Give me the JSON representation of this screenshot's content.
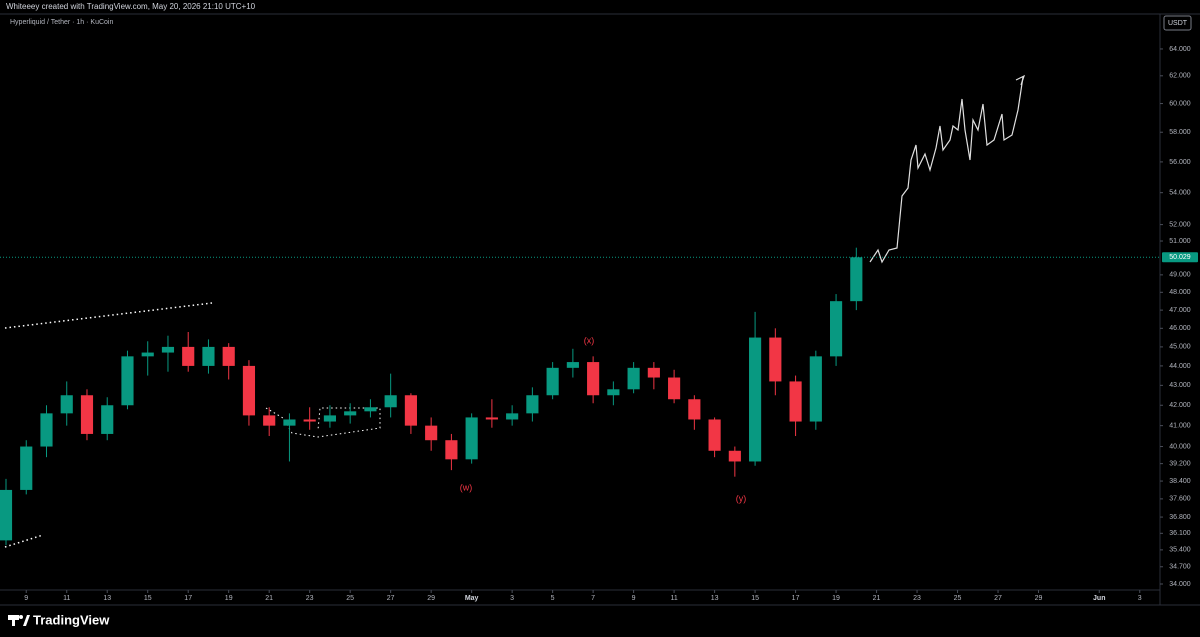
{
  "header": "Whiteeey created with TradingView.com, May 20, 2026 21:10 UTC+10",
  "footer": "TradingView",
  "chart_data": {
    "type": "candlestick",
    "title": "Hyperliquid / Tether · 1h · KuCoin",
    "currency": "USDT",
    "up_color": "#089981",
    "down_color": "#f23645",
    "log_scale": true,
    "x": [
      "2026-04-08",
      "2026-04-09",
      "2026-04-10",
      "2026-04-11",
      "2026-04-12",
      "2026-04-13",
      "2026-04-14",
      "2026-04-15",
      "2026-04-16",
      "2026-04-17",
      "2026-04-18",
      "2026-04-19",
      "2026-04-20",
      "2026-04-21",
      "2026-04-22",
      "2026-04-23",
      "2026-04-24",
      "2026-04-25",
      "2026-04-26",
      "2026-04-27",
      "2026-04-28",
      "2026-04-29",
      "2026-04-30",
      "2026-05-01",
      "2026-05-02",
      "2026-05-03",
      "2026-05-04",
      "2026-05-05",
      "2026-05-06",
      "2026-05-07",
      "2026-05-08",
      "2026-05-09",
      "2026-05-10",
      "2026-05-11",
      "2026-05-12",
      "2026-05-13",
      "2026-05-14",
      "2026-05-15",
      "2026-05-16",
      "2026-05-17",
      "2026-05-18",
      "2026-05-19",
      "2026-05-20"
    ],
    "open": [
      35.8,
      38.0,
      40.0,
      41.6,
      42.5,
      40.6,
      42.0,
      44.5,
      44.7,
      45.0,
      44.0,
      45.0,
      44.0,
      41.5,
      41.0,
      41.3,
      41.2,
      41.5,
      41.7,
      41.9,
      42.5,
      41.0,
      40.3,
      39.4,
      41.4,
      41.3,
      41.6,
      42.5,
      43.9,
      44.2,
      42.5,
      42.8,
      43.9,
      43.4,
      42.3,
      41.3,
      39.8,
      39.3,
      45.5,
      43.2,
      41.2,
      44.5,
      47.5
    ],
    "high": [
      38.5,
      40.3,
      42.0,
      43.2,
      42.8,
      42.4,
      44.8,
      45.3,
      45.6,
      45.8,
      45.4,
      45.2,
      44.3,
      41.9,
      41.6,
      41.9,
      42.0,
      42.1,
      42.3,
      43.6,
      42.6,
      41.4,
      40.6,
      41.6,
      42.3,
      42.0,
      42.9,
      44.2,
      44.9,
      44.5,
      43.2,
      44.2,
      44.2,
      43.8,
      42.5,
      41.4,
      40.0,
      46.9,
      46.0,
      43.5,
      44.8,
      47.9,
      50.6
    ],
    "low": [
      35.6,
      37.8,
      39.5,
      41.0,
      40.3,
      40.3,
      41.8,
      43.5,
      43.7,
      43.7,
      43.6,
      43.3,
      41.0,
      40.5,
      39.3,
      40.8,
      40.9,
      41.1,
      41.4,
      41.4,
      40.6,
      39.8,
      38.9,
      39.2,
      40.9,
      41.0,
      41.2,
      42.3,
      43.4,
      42.1,
      42.0,
      42.6,
      42.8,
      42.1,
      40.8,
      39.5,
      38.6,
      39.1,
      42.5,
      40.5,
      40.8,
      44.0,
      47.0
    ],
    "close": [
      38.0,
      40.0,
      41.6,
      42.5,
      40.6,
      42.0,
      44.5,
      44.7,
      45.0,
      44.0,
      45.0,
      44.0,
      41.5,
      41.0,
      41.3,
      41.2,
      41.5,
      41.7,
      41.9,
      42.5,
      41.0,
      40.3,
      39.4,
      41.4,
      41.3,
      41.6,
      42.5,
      43.9,
      44.2,
      42.5,
      42.8,
      43.9,
      43.4,
      42.3,
      41.3,
      39.8,
      39.3,
      45.5,
      43.2,
      41.2,
      44.5,
      47.5,
      50.029
    ],
    "last_price": 50.029,
    "annotations": [
      "(w)",
      "(x)",
      "(y)"
    ],
    "xlim": [
      "2026-04-08",
      "2026-06-04"
    ],
    "xticks": [
      {
        "value": "2026-04-09",
        "label": "9"
      },
      {
        "value": "2026-04-11",
        "label": "11"
      },
      {
        "value": "2026-04-13",
        "label": "13"
      },
      {
        "value": "2026-04-15",
        "label": "15"
      },
      {
        "value": "2026-04-17",
        "label": "17"
      },
      {
        "value": "2026-04-19",
        "label": "19"
      },
      {
        "value": "2026-04-21",
        "label": "21"
      },
      {
        "value": "2026-04-23",
        "label": "23"
      },
      {
        "value": "2026-04-25",
        "label": "25"
      },
      {
        "value": "2026-04-27",
        "label": "27"
      },
      {
        "value": "2026-04-29",
        "label": "29"
      },
      {
        "value": "2026-05-01",
        "label": "May"
      },
      {
        "value": "2026-05-03",
        "label": "3"
      },
      {
        "value": "2026-05-05",
        "label": "5"
      },
      {
        "value": "2026-05-07",
        "label": "7"
      },
      {
        "value": "2026-05-09",
        "label": "9"
      },
      {
        "value": "2026-05-11",
        "label": "11"
      },
      {
        "value": "2026-05-13",
        "label": "13"
      },
      {
        "value": "2026-05-15",
        "label": "15"
      },
      {
        "value": "2026-05-17",
        "label": "17"
      },
      {
        "value": "2026-05-19",
        "label": "19"
      },
      {
        "value": "2026-05-21",
        "label": "21"
      },
      {
        "value": "2026-05-23",
        "label": "23"
      },
      {
        "value": "2026-05-25",
        "label": "25"
      },
      {
        "value": "2026-05-27",
        "label": "27"
      },
      {
        "value": "2026-05-29",
        "label": "29"
      },
      {
        "value": "2026-06-01",
        "label": "Jun"
      },
      {
        "value": "2026-06-03",
        "label": "3"
      }
    ],
    "ylim": [
      33.76,
      66.7
    ],
    "yticks": [
      {
        "value": 34,
        "label": "34.000"
      },
      {
        "value": 34.7,
        "label": "34.700"
      },
      {
        "value": 35.4,
        "label": "35.400"
      },
      {
        "value": 36.1,
        "label": "36.100"
      },
      {
        "value": 36.8,
        "label": "36.800"
      },
      {
        "value": 37.6,
        "label": "37.600"
      },
      {
        "value": 38.4,
        "label": "38.400"
      },
      {
        "value": 39.2,
        "label": "39.200"
      },
      {
        "value": 40,
        "label": "40.000"
      },
      {
        "value": 41,
        "label": "41.000"
      },
      {
        "value": 42,
        "label": "42.000"
      },
      {
        "value": 43,
        "label": "43.000"
      },
      {
        "value": 44,
        "label": "44.000"
      },
      {
        "value": 45,
        "label": "45.000"
      },
      {
        "value": 46,
        "label": "46.000"
      },
      {
        "value": 47,
        "label": "47.000"
      },
      {
        "value": 48,
        "label": "48.000"
      },
      {
        "value": 49,
        "label": "49.000"
      },
      {
        "value": 51,
        "label": "51.000"
      },
      {
        "value": 52,
        "label": "52.000"
      },
      {
        "value": 54,
        "label": "54.000"
      },
      {
        "value": 56,
        "label": "56.000"
      },
      {
        "value": 58,
        "label": "58.000"
      },
      {
        "value": 60,
        "label": "60.000"
      },
      {
        "value": 62,
        "label": "62.000"
      },
      {
        "value": 64,
        "label": "64.000"
      }
    ]
  }
}
